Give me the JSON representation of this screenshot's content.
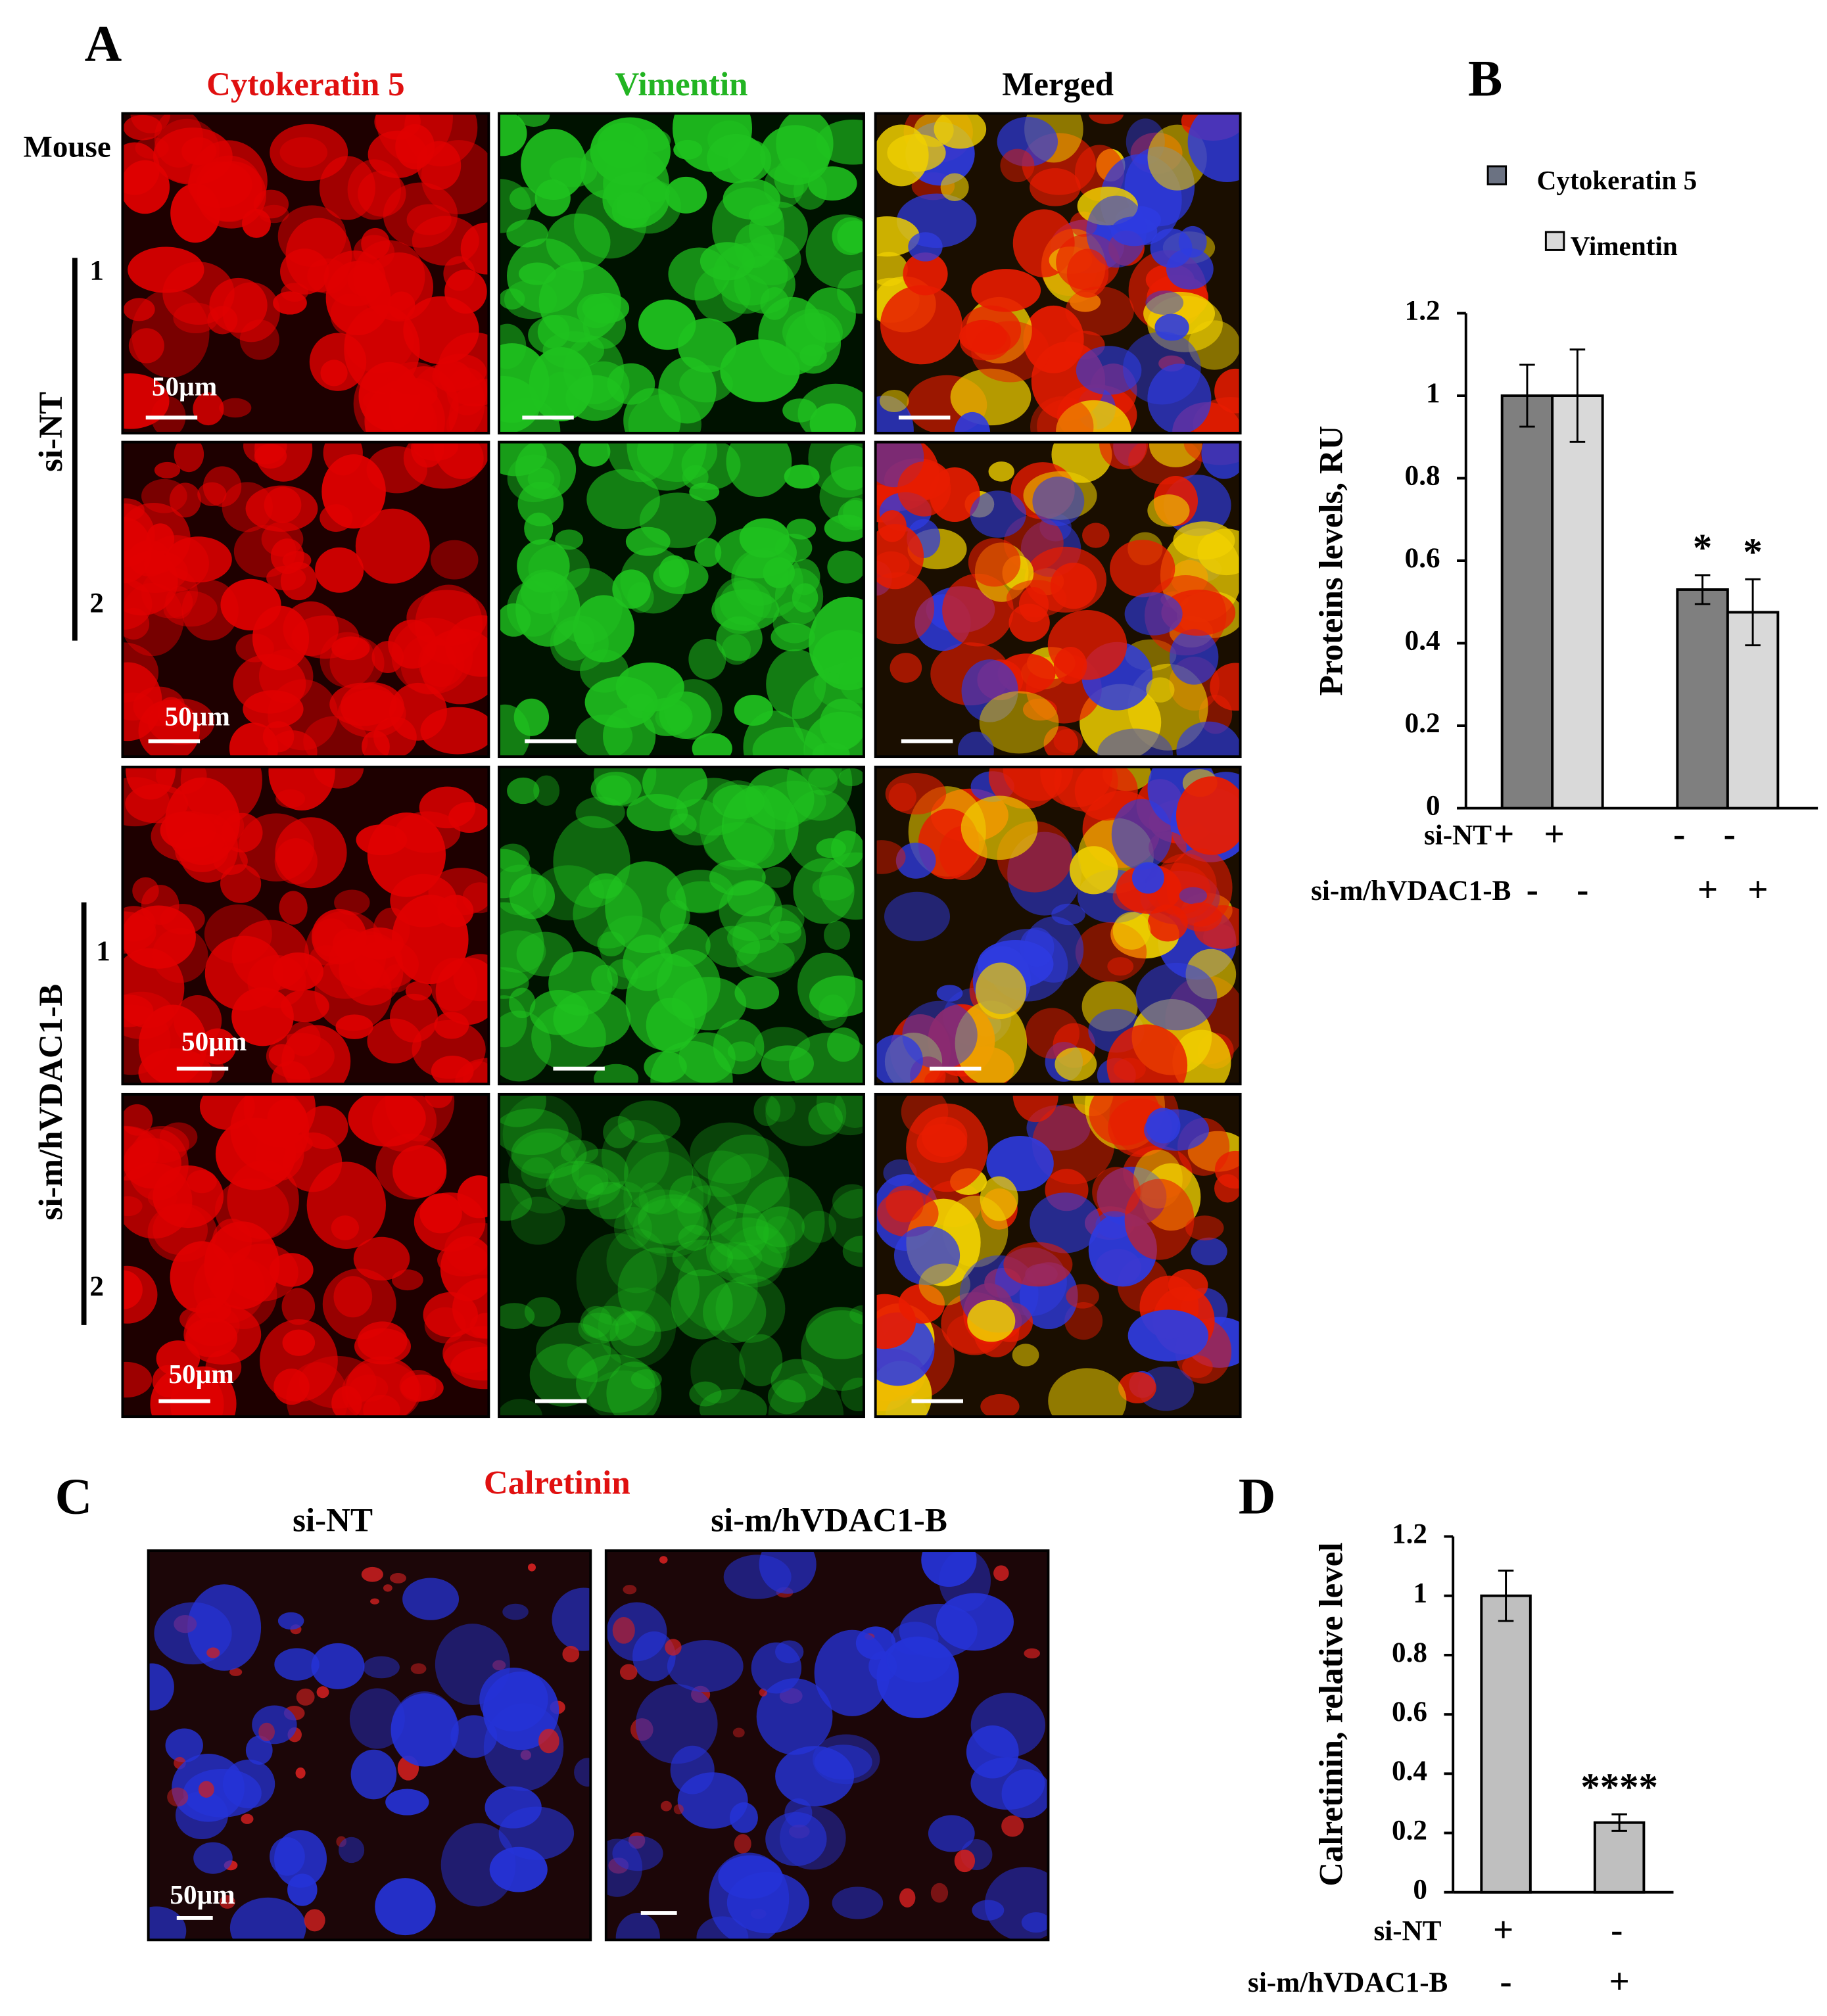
{
  "figure": {
    "panel_labels": [
      "A",
      "C"
    ],
    "panel_a": {
      "columns": [
        "Cytokeratin 5",
        "Vimentin",
        "Merged"
      ],
      "row_header": "Mouse",
      "groups": [
        {
          "label": "si-NT",
          "replicates": [
            "1",
            "2"
          ]
        },
        {
          "label": "si-m/hVDAC1-B",
          "replicates": [
            "1",
            "2"
          ]
        }
      ],
      "scale_labels": [
        "50µm",
        "50µm",
        "50µm",
        "50µm"
      ]
    },
    "panel_c": {
      "title": "Calretinin",
      "columns": [
        "si-NT",
        "si-m/hVDAC1-B"
      ],
      "scale_label": "50µm"
    }
  },
  "chart_data": [
    {
      "type": "bar",
      "panel_label": "B",
      "ylabel": "Proteins levels, RU",
      "ylim": [
        0,
        1.2
      ],
      "yticks": [
        0,
        0.2,
        0.4,
        0.6,
        0.8,
        1,
        1.2
      ],
      "series": [
        {
          "name": "Cytokeratin 5",
          "color": "#7f7f7f",
          "legend_color": "#6b7282",
          "values": [
            1,
            0.53
          ],
          "errors": [
            0.075,
            0.035
          ],
          "annotations": [
            null,
            "*"
          ]
        },
        {
          "name": "Vimentin",
          "color": "#d9d9d9",
          "legend_color": "#d9d9d9",
          "values": [
            1,
            0.475
          ],
          "errors": [
            0.112,
            0.08
          ],
          "annotations": [
            null,
            "*"
          ]
        }
      ],
      "conditions": [
        {
          "name": "si-NT",
          "signs": [
            "+",
            "+",
            "-",
            "-"
          ]
        },
        {
          "name": "si-m/hVDAC1-B",
          "signs": [
            "-",
            "-",
            "+",
            "+"
          ]
        }
      ]
    },
    {
      "type": "bar",
      "panel_label": "D",
      "ylabel": "Calretinin, relative  level",
      "ylim": [
        0,
        1.2
      ],
      "yticks": [
        0,
        0.2,
        0.4,
        0.6,
        0.8,
        1,
        1.2
      ],
      "series": [
        {
          "color": "#bfbfbf",
          "values": [
            1,
            0.235
          ],
          "errors": [
            0.085,
            0.028
          ],
          "annotations": [
            null,
            "****"
          ]
        }
      ],
      "conditions": [
        {
          "name": "si-NT",
          "signs": [
            "+",
            "-"
          ]
        },
        {
          "name": "si-m/hVDAC1-B",
          "signs": [
            "-",
            "+"
          ]
        }
      ]
    }
  ]
}
